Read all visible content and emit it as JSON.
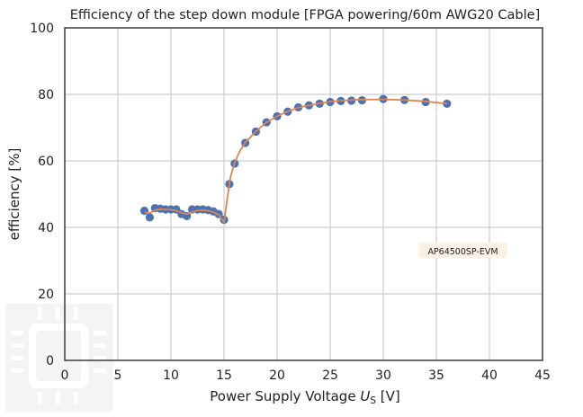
{
  "chart_data": {
    "type": "scatter",
    "title": "Efficiency of the step down module [FPGA powering/60m AWG20 Cable]",
    "xlabel_prefix": "Power Supply Voltage ",
    "xlabel_var": "U",
    "xlabel_sub": "S",
    "xlabel_suffix": " [V]",
    "ylabel": "efficiency [%]",
    "xlim": [
      0,
      45
    ],
    "ylim": [
      0,
      100
    ],
    "xticks": [
      0,
      5,
      10,
      15,
      20,
      25,
      30,
      35,
      40,
      45
    ],
    "yticks": [
      0,
      20,
      40,
      60,
      80,
      100
    ],
    "grid": true,
    "annotation": {
      "text": "AP64500SP-EVM",
      "x": 37.5,
      "y": 33
    },
    "colors": {
      "points": "#4c72b0",
      "fit": "#dd8452",
      "annotation_bg": "#fdf1e6"
    },
    "series": [
      {
        "type": "scatter",
        "x": [
          7.5,
          8.0,
          8.5,
          9.0,
          9.5,
          10.0,
          10.5,
          11.0,
          11.5,
          12.0,
          12.5,
          13.0,
          13.5,
          14.0,
          14.5,
          15.0,
          15.5,
          16.0,
          17.0,
          18.0,
          19.0,
          20.0,
          21.0,
          22.0,
          23.0,
          24.0,
          25.0,
          26.0,
          27.0,
          28.0,
          30.0,
          32.0,
          34.0,
          36.0
        ],
        "y": [
          45.0,
          43.0,
          45.8,
          45.6,
          45.4,
          45.4,
          45.4,
          44.0,
          43.4,
          45.4,
          45.4,
          45.4,
          45.2,
          44.8,
          44.0,
          42.3,
          53.0,
          59.2,
          65.4,
          68.8,
          71.6,
          73.4,
          74.8,
          76.1,
          76.7,
          77.2,
          77.7,
          78.0,
          78.1,
          78.2,
          78.6,
          78.3,
          77.7,
          77.2
        ]
      },
      {
        "type": "line",
        "x": [
          7.5,
          8.0,
          8.5,
          9.0,
          9.5,
          10.0,
          10.5,
          11.0,
          11.5,
          12.0,
          12.5,
          13.0,
          13.5,
          14.0,
          14.5,
          15.0,
          15.3,
          15.6,
          16.0,
          16.5,
          17.0,
          18.0,
          19.0,
          20.0,
          21.0,
          22.0,
          23.0,
          24.0,
          25.0,
          26.0,
          27.0,
          28.0,
          30.0,
          32.0,
          34.0,
          36.0
        ],
        "y": [
          44.5,
          44.3,
          45.2,
          45.5,
          45.4,
          45.3,
          45.0,
          44.4,
          44.0,
          44.6,
          45.1,
          45.2,
          45.0,
          44.6,
          43.8,
          41.5,
          48.5,
          55.0,
          59.5,
          63.0,
          65.5,
          68.9,
          71.6,
          73.4,
          74.9,
          76.0,
          76.7,
          77.3,
          77.8,
          78.1,
          78.3,
          78.4,
          78.5,
          78.3,
          77.9,
          77.2
        ]
      }
    ]
  }
}
